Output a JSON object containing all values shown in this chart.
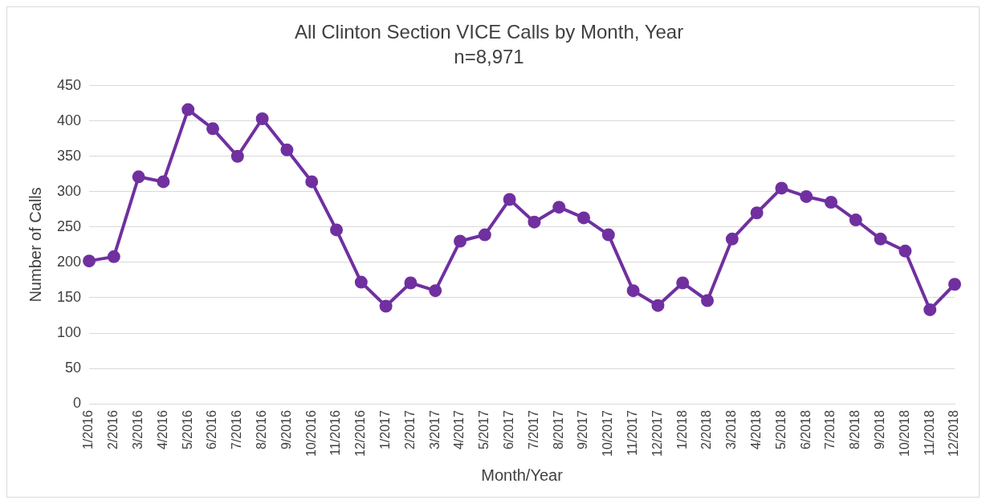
{
  "chart_data": {
    "type": "line",
    "title": "All Clinton Section VICE Calls by Month, Year",
    "subtitle": "n=8,971",
    "xlabel": "Month/Year",
    "ylabel": "Number of Calls",
    "categories": [
      "1/2016",
      "2/2016",
      "3/2016",
      "4/2016",
      "5/2016",
      "6/2016",
      "7/2016",
      "8/2016",
      "9/2016",
      "10/2016",
      "11/2016",
      "12/2016",
      "1/2017",
      "2/2017",
      "3/2017",
      "4/2017",
      "5/2017",
      "6/2017",
      "7/2017",
      "8/2017",
      "9/2017",
      "10/2017",
      "11/2017",
      "12/2017",
      "1/2018",
      "2/2018",
      "3/2018",
      "4/2018",
      "5/2018",
      "6/2018",
      "7/2018",
      "8/2018",
      "9/2018",
      "10/2018",
      "11/2018",
      "12/2018"
    ],
    "series": [
      {
        "color": "#7030a0",
        "values": [
          202,
          208,
          321,
          314,
          416,
          389,
          350,
          403,
          359,
          314,
          246,
          172,
          138,
          171,
          160,
          230,
          239,
          289,
          257,
          278,
          263,
          239,
          160,
          139,
          171,
          146,
          233,
          270,
          305,
          293,
          285,
          260,
          233,
          216,
          133,
          169
        ]
      }
    ],
    "ylim": [
      0,
      450
    ],
    "yticks": [
      0,
      50,
      100,
      150,
      200,
      250,
      300,
      350,
      400,
      450
    ],
    "grid": "y",
    "legend": false,
    "marker": "circle",
    "line_style": "solid"
  }
}
